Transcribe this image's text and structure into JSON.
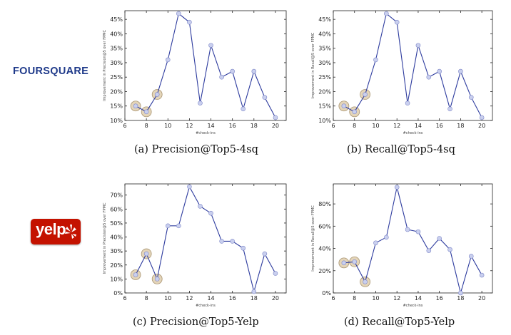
{
  "brands": {
    "foursquare": "FOURSQUARE",
    "yelp": "yelp"
  },
  "chart_data": [
    {
      "type": "line",
      "caption": "(a) Precision@Top5-4sq",
      "xlabel": "#check-ins",
      "ylabel": "Improvement in Precision@5 over FPMC",
      "x": [
        7,
        8,
        9,
        10,
        11,
        12,
        13,
        14,
        15,
        16,
        17,
        18,
        19,
        20
      ],
      "values": [
        15,
        13,
        19,
        31,
        47,
        44,
        16,
        36,
        25,
        27,
        14,
        27,
        18,
        11
      ],
      "highlighted_x": [
        7,
        8,
        9
      ],
      "xlim": [
        6,
        21
      ],
      "ylim": [
        10,
        48
      ],
      "xticks": [
        6,
        8,
        10,
        12,
        14,
        16,
        18,
        20
      ],
      "yticks": [
        10,
        15,
        20,
        25,
        30,
        35,
        40,
        45
      ],
      "ytick_labels": [
        "10%",
        "15%",
        "20%",
        "25%",
        "30%",
        "35%",
        "40%",
        "45%"
      ]
    },
    {
      "type": "line",
      "caption": "(b) Recall@Top5-4sq",
      "xlabel": "#check-ins",
      "ylabel": "Improvement in Recall@5 over FPMC",
      "x": [
        7,
        8,
        9,
        10,
        11,
        12,
        13,
        14,
        15,
        16,
        17,
        18,
        19,
        20
      ],
      "values": [
        15,
        13,
        19,
        31,
        47,
        44,
        16,
        36,
        25,
        27,
        14,
        27,
        18,
        11
      ],
      "highlighted_x": [
        7,
        8,
        9
      ],
      "xlim": [
        6,
        21
      ],
      "ylim": [
        10,
        48
      ],
      "xticks": [
        6,
        8,
        10,
        12,
        14,
        16,
        18,
        20
      ],
      "yticks": [
        10,
        15,
        20,
        25,
        30,
        35,
        40,
        45
      ],
      "ytick_labels": [
        "10%",
        "15%",
        "20%",
        "25%",
        "30%",
        "35%",
        "40%",
        "45%"
      ]
    },
    {
      "type": "line",
      "caption": "(c) Precision@Top5-Yelp",
      "xlabel": "#check-ins",
      "ylabel": "Improvement in Precision@5 over FPMC",
      "x": [
        7,
        8,
        9,
        10,
        11,
        12,
        13,
        14,
        15,
        16,
        17,
        18,
        19,
        20
      ],
      "values": [
        13,
        28,
        10,
        48,
        48,
        76,
        62,
        57,
        37,
        37,
        32,
        1,
        28,
        14
      ],
      "highlighted_x": [
        7,
        8,
        9
      ],
      "xlim": [
        6,
        21
      ],
      "ylim": [
        0,
        78
      ],
      "xticks": [
        6,
        8,
        10,
        12,
        14,
        16,
        18,
        20
      ],
      "yticks": [
        0,
        10,
        20,
        30,
        40,
        50,
        60,
        70
      ],
      "ytick_labels": [
        "0%",
        "10%",
        "20%",
        "30%",
        "40%",
        "50%",
        "60%",
        "70%"
      ]
    },
    {
      "type": "line",
      "caption": "(d) Recall@Top5-Yelp",
      "xlabel": "#check-ins",
      "ylabel": "Improvement in Recall@5 over FPMC",
      "x": [
        7,
        8,
        9,
        10,
        11,
        12,
        13,
        14,
        15,
        16,
        17,
        18,
        19,
        20
      ],
      "values": [
        27,
        28,
        10,
        45,
        50,
        95,
        57,
        55,
        38,
        49,
        39,
        0,
        33,
        16
      ],
      "highlighted_x": [
        7,
        8,
        9
      ],
      "xlim": [
        6,
        21
      ],
      "ylim": [
        0,
        98
      ],
      "xticks": [
        6,
        8,
        10,
        12,
        14,
        16,
        18,
        20
      ],
      "yticks": [
        0,
        20,
        40,
        60,
        80
      ],
      "ytick_labels": [
        "0%",
        "20%",
        "40%",
        "60%",
        "80%"
      ]
    }
  ],
  "colors": {
    "line": "#2d3b9e",
    "marker_fill": "#c9cfee",
    "marker_stroke": "#7f88c8",
    "highlight_fill": "#e2d1b2",
    "highlight_stroke": "#a08a64",
    "axis": "#222222",
    "yelp_red": "#c41200",
    "foursquare_blue": "#1f3a8a"
  }
}
